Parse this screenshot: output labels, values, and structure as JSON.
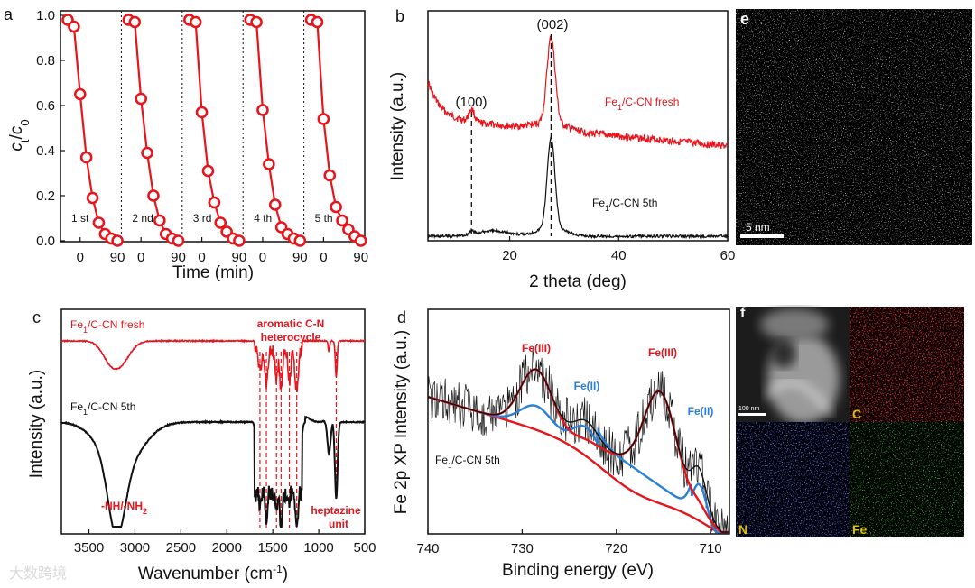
{
  "watermark": "大数跨境",
  "colors": {
    "red": "#e8141c",
    "blue": "#2a7fd6",
    "black": "#111111"
  },
  "chart_data": [
    {
      "panel": "a",
      "type": "scatter",
      "ylabel_c": "c",
      "ylabel_t": "t",
      "ylabel_0": "0",
      "ylabel_slash": "/",
      "xlabel": "Time (min)",
      "ylim": [
        0,
        1.0
      ],
      "yticks": [
        "0.0",
        "0.2",
        "0.4",
        "0.6",
        "0.8",
        "1.0"
      ],
      "xticks": [
        "0",
        "90"
      ],
      "cycles": [
        {
          "label": "1 st",
          "x": [
            -30,
            -15,
            0,
            15,
            30,
            45,
            60,
            75,
            90
          ],
          "y": [
            0.98,
            0.95,
            0.65,
            0.37,
            0.19,
            0.08,
            0.03,
            0.01,
            0.0
          ]
        },
        {
          "label": "2 nd",
          "x": [
            -30,
            -15,
            0,
            15,
            30,
            45,
            60,
            75,
            90
          ],
          "y": [
            0.98,
            0.97,
            0.63,
            0.39,
            0.2,
            0.09,
            0.03,
            0.01,
            0.0
          ]
        },
        {
          "label": "3 rd",
          "x": [
            -30,
            -15,
            0,
            15,
            30,
            45,
            60,
            75,
            90
          ],
          "y": [
            0.98,
            0.97,
            0.57,
            0.31,
            0.17,
            0.08,
            0.04,
            0.01,
            0.0
          ]
        },
        {
          "label": "4 th",
          "x": [
            -30,
            -15,
            0,
            15,
            30,
            45,
            60,
            75,
            90
          ],
          "y": [
            0.98,
            0.97,
            0.58,
            0.34,
            0.16,
            0.06,
            0.03,
            0.01,
            0.0
          ]
        },
        {
          "label": "5 th",
          "x": [
            -30,
            -15,
            0,
            15,
            30,
            45,
            60,
            75,
            90
          ],
          "y": [
            0.98,
            0.97,
            0.54,
            0.29,
            0.15,
            0.09,
            0.05,
            0.02,
            0.0
          ]
        }
      ]
    },
    {
      "panel": "b",
      "type": "line",
      "xlabel": "2 theta (deg)",
      "ylabel": "Intensity (a.u.)",
      "xlim": [
        5,
        60
      ],
      "xticks": [
        "20",
        "40",
        "60"
      ],
      "peak_labels": [
        "(100)",
        "(002)"
      ],
      "peak_positions": [
        13.0,
        27.6
      ],
      "series": [
        {
          "name_main": "Fe",
          "name_sub": "1",
          "name_rest": "/C-CN fresh",
          "color": "red"
        },
        {
          "name_main": "Fe",
          "name_sub": "1",
          "name_rest": "/C-CN 5th",
          "color": "black"
        }
      ]
    },
    {
      "panel": "c",
      "type": "line",
      "xlabel_main": "Wavenumber (cm",
      "xlabel_sup": "-1",
      "xlabel_end": ")",
      "ylabel": "Intensity (a.u.)",
      "xlim": [
        3800,
        500
      ],
      "xticks": [
        "3500",
        "3000",
        "2500",
        "2000",
        "1500",
        "1000",
        "500"
      ],
      "annotations": [
        "aromatic C-N",
        "heterocycle",
        "heptazine",
        "unit"
      ],
      "annotation_nh_main": "-NH/-NH",
      "annotation_nh_sub": "2",
      "series": [
        {
          "name_main": "Fe",
          "name_sub": "1",
          "name_rest": "/C-CN fresh",
          "color": "red"
        },
        {
          "name_main": "Fe",
          "name_sub": "1",
          "name_rest": "/C-CN 5th",
          "color": "black"
        }
      ]
    },
    {
      "panel": "d",
      "type": "line",
      "xlabel": "Binding energy (eV)",
      "ylabel": "Fe 2p XP Intensity (a.u.)",
      "xlim": [
        740,
        708
      ],
      "xticks": [
        "740",
        "730",
        "720",
        "710"
      ],
      "peaks": [
        {
          "label": "Fe(III)",
          "center": 728.5,
          "color": "red"
        },
        {
          "label": "Fe(II)",
          "center": 723.3,
          "color": "blue"
        },
        {
          "label": "Fe(III)",
          "center": 715.3,
          "color": "red"
        },
        {
          "label": "Fe(II)",
          "center": 711.2,
          "color": "blue"
        }
      ],
      "sample_main": "Fe",
      "sample_sub": "1",
      "sample_rest": "/C-CN 5th"
    }
  ],
  "images": {
    "panel_e": {
      "letter": "e",
      "scale": "5 nm"
    },
    "panel_f": {
      "letter": "f",
      "scale": "100 nm",
      "maps": [
        "C",
        "N",
        "Fe"
      ]
    }
  }
}
